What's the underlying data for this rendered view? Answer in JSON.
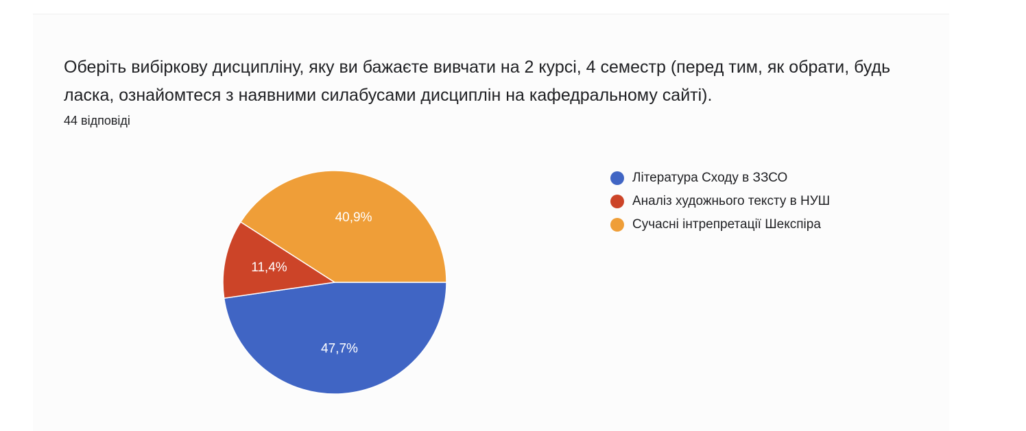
{
  "question": {
    "title": "Оберіть вибіркову дисципліну, яку ви бажаєте вивчати на 2 курсі, 4 семестр  (перед тим, як обрати, будь ласка, ознайомтеся з наявними силабусами  дисциплін на кафедральному сайті).",
    "response_count": "44 відповіді"
  },
  "chart_data": {
    "type": "pie",
    "total_responses": 44,
    "slices": [
      {
        "label": "Література Сходу в ЗЗСО",
        "value": 21,
        "percent_label": "47,7%",
        "color": "#4065c4"
      },
      {
        "label": "Аналіз художнього тексту в НУШ",
        "value": 5,
        "percent_label": "11,4%",
        "color": "#cc4428"
      },
      {
        "label": "Сучасні інтрепретації Шекспіра",
        "value": 18,
        "percent_label": "40,9%",
        "color": "#ef9e38"
      }
    ],
    "legend_position": "right"
  }
}
